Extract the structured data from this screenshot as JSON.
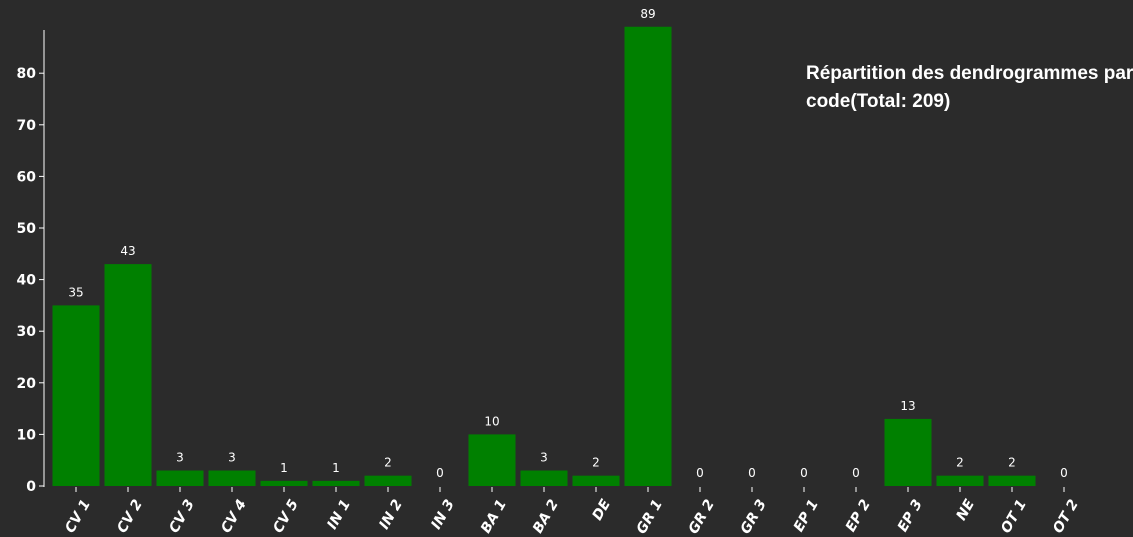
{
  "chart_data": {
    "type": "bar",
    "title_lines": [
      "Répartition des dendrogrammes par",
      "code(Total: 209)"
    ],
    "categories": [
      "CV 1",
      "CV 2",
      "CV 3",
      "CV 4",
      "CV 5",
      "IN 1",
      "IN 2",
      "IN 3",
      "BA 1",
      "BA 2",
      "DE",
      "GR 1",
      "GR 2",
      "GR 3",
      "EP 1",
      "EP 2",
      "EP 3",
      "NE",
      "OT 1",
      "OT 2"
    ],
    "values": [
      35,
      43,
      3,
      3,
      1,
      1,
      2,
      0,
      10,
      3,
      2,
      89,
      0,
      0,
      0,
      0,
      13,
      2,
      2,
      0
    ],
    "ylim": [
      0,
      90
    ],
    "yticks": [
      0,
      10,
      20,
      30,
      40,
      50,
      60,
      70,
      80
    ],
    "xlabel": "",
    "ylabel": "",
    "bar_color": "#008000",
    "grid": false,
    "legend": "none"
  }
}
